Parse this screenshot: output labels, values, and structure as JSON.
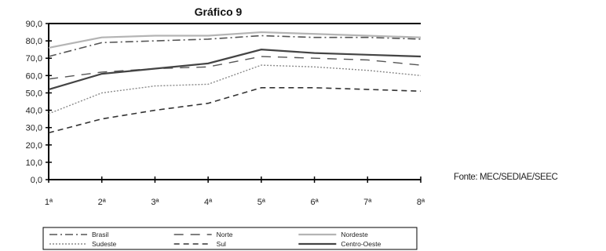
{
  "chart_data": {
    "type": "line",
    "title": "Gráfico 9",
    "categories": [
      "1ª",
      "2ª",
      "3ª",
      "4ª",
      "5ª",
      "6ª",
      "7ª",
      "8ª"
    ],
    "ylim": [
      0,
      90
    ],
    "yticks": [
      "0,0",
      "10,0",
      "20,0",
      "30,0",
      "40,0",
      "50,0",
      "60,0",
      "70,0",
      "80,0",
      "90,0"
    ],
    "grid": "none",
    "legend_position": "bottom",
    "series": [
      {
        "name": "Brasil",
        "style": "dash-dot",
        "color": "#555555",
        "values": [
          71,
          79,
          80,
          81,
          83,
          82,
          82,
          81
        ]
      },
      {
        "name": "Norte",
        "style": "long-dash",
        "color": "#555555",
        "values": [
          58,
          62,
          64,
          65,
          71,
          70,
          69,
          66
        ]
      },
      {
        "name": "Nordeste",
        "style": "solid-light",
        "color": "#b4b4b4",
        "values": [
          76,
          82,
          83,
          83,
          85,
          84,
          83,
          82
        ]
      },
      {
        "name": "Sudeste",
        "style": "dotted",
        "color": "#8a8a8a",
        "values": [
          38,
          50,
          54,
          55,
          66,
          65,
          63,
          60
        ]
      },
      {
        "name": "Sul",
        "style": "dashed",
        "color": "#333333",
        "values": [
          27,
          35,
          40,
          44,
          53,
          53,
          52,
          51
        ]
      },
      {
        "name": "Centro-Oeste",
        "style": "solid-dark",
        "color": "#444444",
        "values": [
          52,
          61,
          64,
          67,
          75,
          73,
          72,
          71
        ]
      }
    ]
  },
  "source": "Fonte: MEC/SEDIAE/SEEC"
}
